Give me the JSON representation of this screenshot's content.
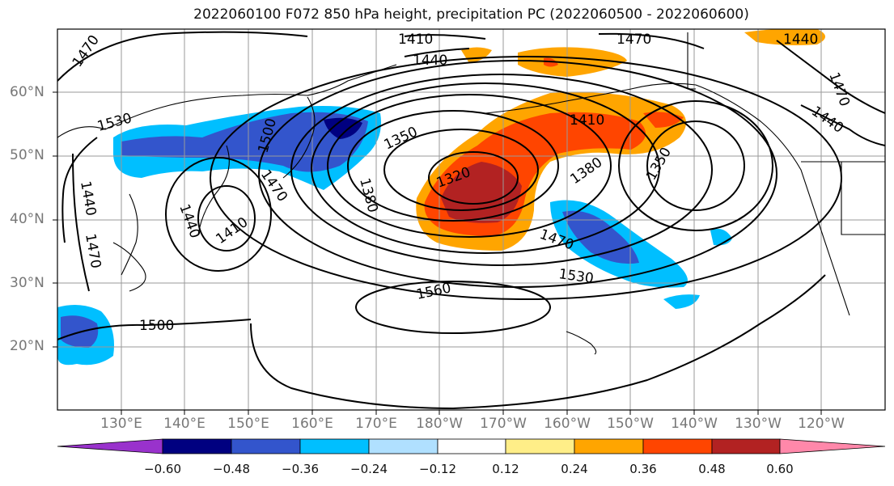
{
  "title": "2022060100 F072 850 hPa height, precipitation PC (2022060500 - 2022060600)",
  "lat_labels": [
    "60°N",
    "50°N",
    "40°N",
    "30°N",
    "20°N"
  ],
  "lon_labels": [
    "130°E",
    "140°E",
    "150°E",
    "160°E",
    "170°E",
    "180°W",
    "170°W",
    "160°W",
    "150°W",
    "140°W",
    "130°W",
    "120°W"
  ],
  "contour_labels": [
    "1470",
    "1410",
    "1440",
    "1470",
    "1440",
    "1530",
    "1500",
    "1350",
    "1380",
    "1320",
    "1410",
    "1380",
    "1350",
    "1470",
    "1440",
    "1410",
    "1470",
    "1530",
    "1560",
    "1500",
    "1470",
    "1440",
    "1440",
    "1470"
  ],
  "colorbar": {
    "labels": [
      "−0.60",
      "−0.48",
      "−0.36",
      "−0.24",
      "−0.12",
      "0.12",
      "0.24",
      "0.36",
      "0.48",
      "0.60"
    ],
    "colors": [
      "#9932cc",
      "#000080",
      "#3355cc",
      "#00bfff",
      "#b0e0ff",
      "#ffffff",
      "#ffee88",
      "#ffa500",
      "#ff4500",
      "#b22222",
      "#ff88aa"
    ]
  }
}
